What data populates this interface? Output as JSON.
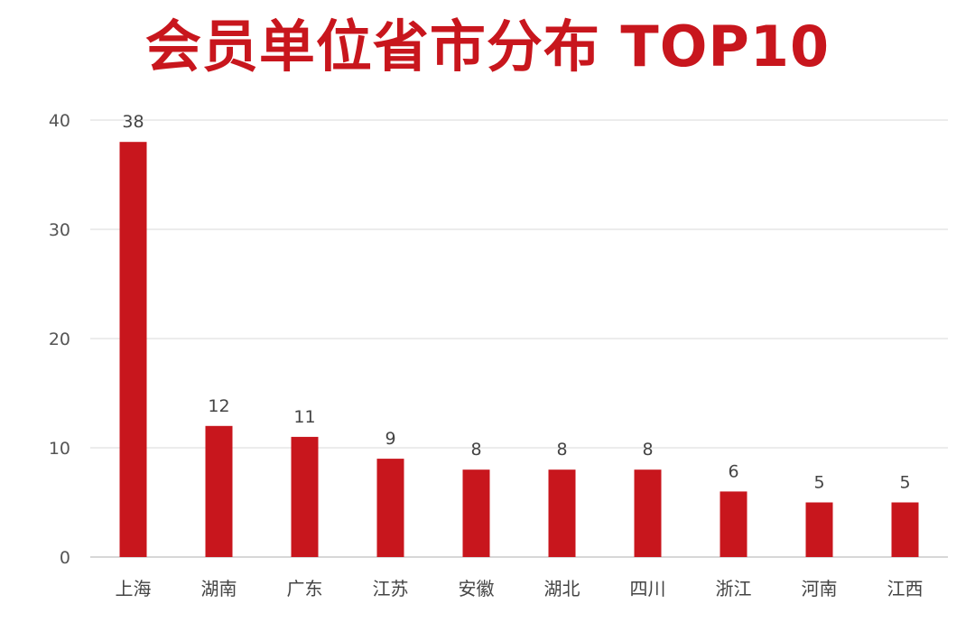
{
  "chart_data": {
    "type": "bar",
    "title": "会员单位省市分布 TOP10",
    "categories": [
      "上海",
      "湖南",
      "广东",
      "江苏",
      "安徽",
      "湖北",
      "四川",
      "浙江",
      "河南",
      "江西"
    ],
    "values": [
      38,
      12,
      11,
      9,
      8,
      8,
      8,
      6,
      5,
      5
    ],
    "ylim": [
      0,
      40
    ],
    "yticks": [
      0,
      10,
      20,
      30,
      40
    ],
    "grid": true,
    "legend": "none",
    "data_labels": true,
    "colors": {
      "bar": "#c8161d",
      "title": "#c8161d"
    }
  }
}
